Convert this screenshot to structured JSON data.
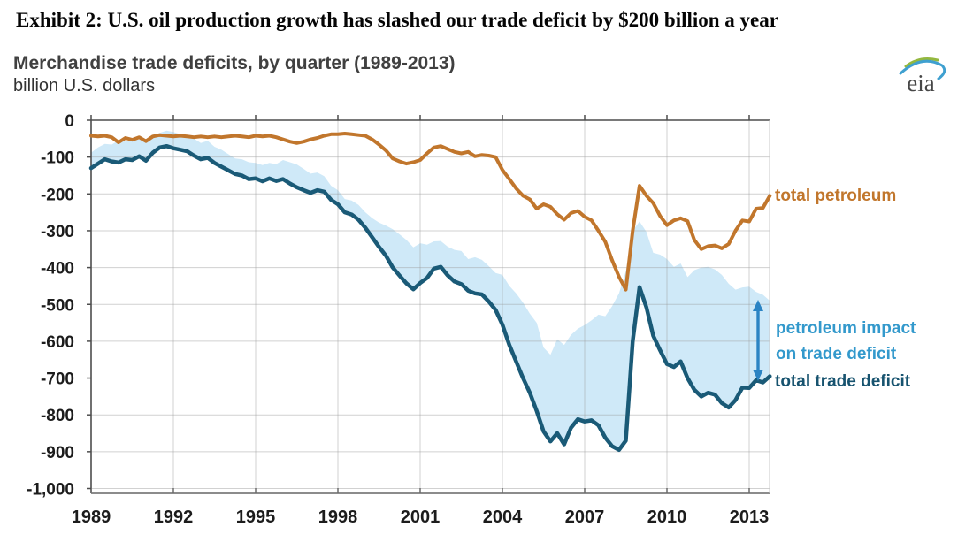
{
  "page": {
    "title": "Exhibit 2: U.S. oil production growth has slashed our trade deficit by $200 billion a year"
  },
  "chart": {
    "subtitle": "Merchandise trade deficits, by quarter (1989-2013)",
    "unit_label": "billion U.S. dollars",
    "logo_text": "eia",
    "annotations": {
      "petroleum_label": "total petroleum",
      "impact_label_line1": "petroleum impact",
      "impact_label_line2": "on trade deficit",
      "deficit_label": "total trade deficit"
    },
    "colors": {
      "petroleum_line": "#c1762c",
      "deficit_line": "#1a5a77",
      "band_fill": "#cfe9f8",
      "impact_text": "#3399cc",
      "deficit_text": "#17536f",
      "arrow": "#2b84c4",
      "grid": "#9a9a9a",
      "axis_dark": "#4d4d4d",
      "axis_bottom": "#8c8c8c",
      "tick_text": "#1c1c1c",
      "logo_green": "#94b83e",
      "logo_blue": "#3fa0d0",
      "logo_text_color": "#474747"
    }
  },
  "chart_data": {
    "type": "line",
    "title": "Merchandise trade deficits, by quarter (1989-2013)",
    "ylabel": "billion U.S. dollars",
    "xlabel": "",
    "x_start": 1989,
    "x_step": 0.25,
    "xlim": [
      1989,
      2013.75
    ],
    "ylim": [
      -1000,
      0
    ],
    "grid": true,
    "x_ticks": [
      1989,
      1992,
      1995,
      1998,
      2001,
      2004,
      2007,
      2010,
      2013
    ],
    "y_ticks": [
      0,
      -100,
      -200,
      -300,
      -400,
      -500,
      -600,
      -700,
      -800,
      -900,
      -1000
    ],
    "y_tick_labels": [
      "0",
      "-100",
      "-200",
      "-300",
      "-400",
      "-500",
      "-600",
      "-700",
      "-800",
      "-900",
      "-1,000"
    ],
    "series": [
      {
        "name": "total petroleum",
        "color": "#c1762c",
        "values": [
          -42,
          -44,
          -42,
          -46,
          -60,
          -48,
          -53,
          -46,
          -57,
          -44,
          -40,
          -42,
          -44,
          -42,
          -44,
          -46,
          -44,
          -46,
          -44,
          -46,
          -44,
          -42,
          -44,
          -46,
          -42,
          -44,
          -42,
          -46,
          -52,
          -58,
          -62,
          -58,
          -52,
          -48,
          -42,
          -38,
          -38,
          -36,
          -38,
          -40,
          -42,
          -52,
          -66,
          -82,
          -104,
          -112,
          -118,
          -114,
          -108,
          -90,
          -74,
          -70,
          -78,
          -86,
          -90,
          -86,
          -98,
          -94,
          -96,
          -100,
          -135,
          -160,
          -185,
          -205,
          -215,
          -240,
          -228,
          -235,
          -255,
          -270,
          -252,
          -246,
          -262,
          -272,
          -300,
          -330,
          -380,
          -425,
          -460,
          -300,
          -178,
          -205,
          -225,
          -260,
          -285,
          -272,
          -266,
          -274,
          -325,
          -350,
          -342,
          -340,
          -348,
          -336,
          -300,
          -272,
          -275,
          -240,
          -238,
          -205
        ]
      },
      {
        "name": "total trade deficit",
        "color": "#1a5a77",
        "values": [
          -130,
          -118,
          -106,
          -112,
          -115,
          -106,
          -108,
          -98,
          -110,
          -88,
          -74,
          -70,
          -76,
          -80,
          -84,
          -96,
          -106,
          -102,
          -116,
          -126,
          -136,
          -146,
          -150,
          -160,
          -158,
          -166,
          -158,
          -165,
          -160,
          -172,
          -182,
          -190,
          -197,
          -190,
          -194,
          -216,
          -228,
          -250,
          -256,
          -270,
          -292,
          -318,
          -344,
          -368,
          -400,
          -422,
          -443,
          -459,
          -442,
          -428,
          -403,
          -398,
          -421,
          -438,
          -445,
          -463,
          -470,
          -473,
          -492,
          -515,
          -555,
          -610,
          -655,
          -700,
          -740,
          -790,
          -845,
          -872,
          -850,
          -880,
          -835,
          -812,
          -818,
          -815,
          -828,
          -862,
          -885,
          -895,
          -870,
          -600,
          -453,
          -508,
          -585,
          -625,
          -662,
          -670,
          -655,
          -700,
          -732,
          -750,
          -740,
          -745,
          -768,
          -780,
          -760,
          -726,
          -727,
          -706,
          -712,
          -695
        ]
      }
    ],
    "band": {
      "name": "petroleum impact on trade deficit",
      "color": "#cfe9f8",
      "definition": "area between (total trade deficit - total petroleum) and total trade deficit"
    }
  }
}
